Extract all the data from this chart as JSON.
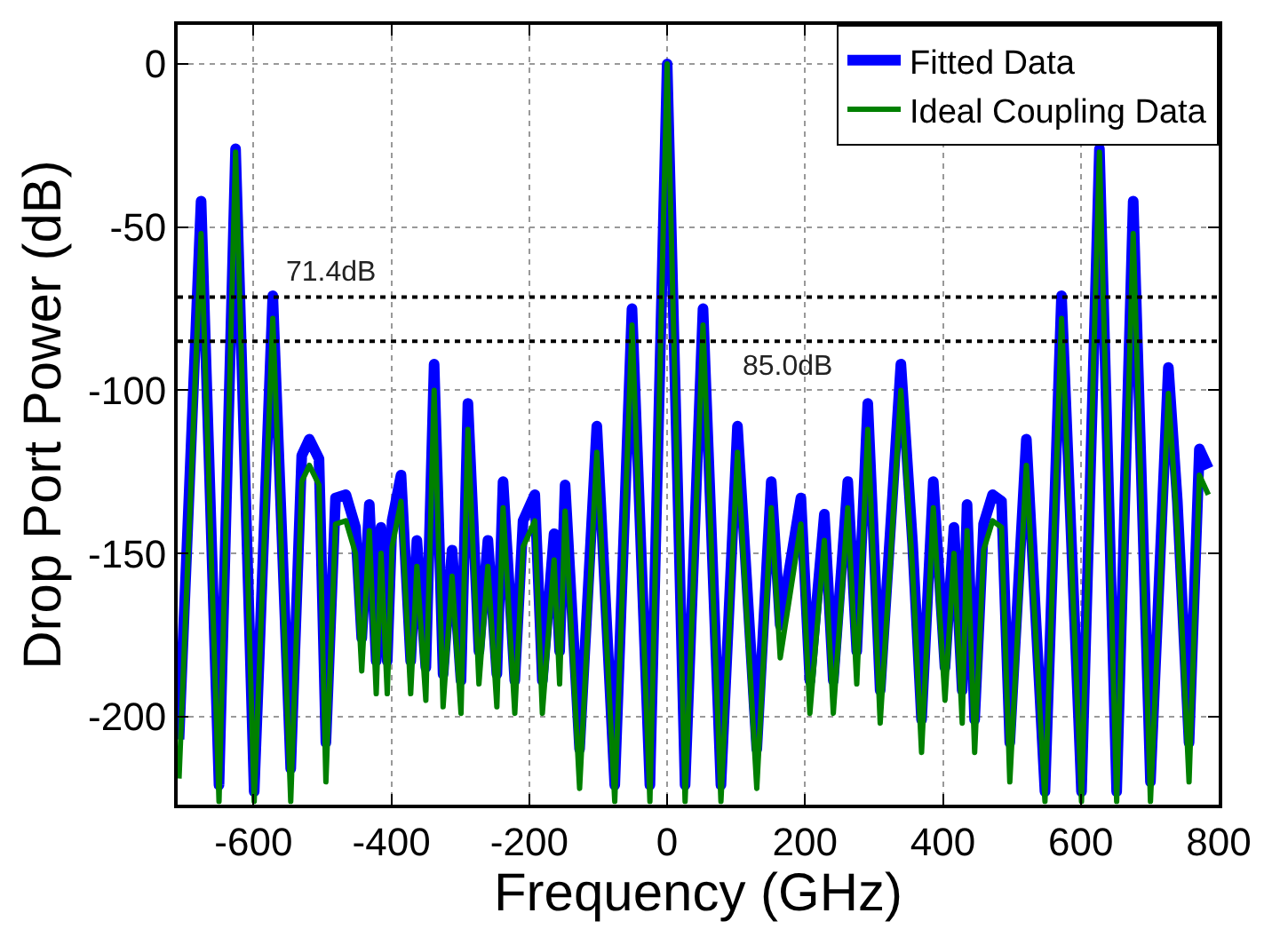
{
  "chart_data": {
    "type": "line",
    "xlabel": "Frequency (GHz)",
    "ylabel": "Drop Port Power (dB)",
    "x": [
      -708,
      -676,
      -650,
      -626,
      -599,
      -572,
      -546,
      -530,
      -519,
      -505,
      -495,
      -481,
      -466,
      -452,
      -443,
      -432,
      -422,
      -415,
      -406,
      -399,
      -386,
      -372,
      -363,
      -350,
      -338,
      -325,
      -312,
      -299,
      -289,
      -273,
      -260,
      -247,
      -238,
      -221,
      -209,
      -192,
      -181,
      -164,
      -156,
      -148,
      -127,
      -102,
      -76,
      -51,
      -25,
      0,
      26,
      52,
      78,
      102,
      130,
      151,
      164,
      194,
      207,
      228,
      241,
      262,
      275,
      291,
      309,
      339,
      356,
      369,
      386,
      403,
      416,
      428,
      435,
      446,
      459,
      472,
      485,
      497,
      521,
      548,
      572,
      601,
      627,
      652,
      676,
      701,
      727,
      740,
      757,
      772,
      785
    ],
    "series": [
      {
        "name": "Fitted Data",
        "color": "#0000ff",
        "values": [
          -207,
          -42,
          -221,
          -26,
          -223,
          -71,
          -216,
          -120,
          -115,
          -121,
          -208,
          -133,
          -132,
          -142,
          -176,
          -135,
          -183,
          -142,
          -183,
          -140,
          -126,
          -183,
          -146,
          -185,
          -92,
          -187,
          -149,
          -189,
          -104,
          -180,
          -146,
          -187,
          -128,
          -189,
          -140,
          -132,
          -189,
          -144,
          -180,
          -129,
          -210,
          -111,
          -221,
          -75,
          -221,
          0,
          -221,
          -75,
          -221,
          -111,
          -210,
          -128,
          -172,
          -133,
          -189,
          -138,
          -189,
          -128,
          -180,
          -104,
          -192,
          -92,
          -147,
          -201,
          -128,
          -185,
          -142,
          -192,
          -135,
          -201,
          -141,
          -132,
          -134,
          -208,
          -115,
          -223,
          -71,
          -223,
          -26,
          -223,
          -42,
          -220,
          -93,
          -134,
          -208,
          -118,
          -124
        ]
      },
      {
        "name": "Ideal Coupling Data",
        "color": "#008000",
        "values": [
          -219,
          -52,
          -226,
          -27,
          -226,
          -78,
          -226,
          -128,
          -123,
          -129,
          -220,
          -141,
          -140,
          -150,
          -186,
          -143,
          -193,
          -150,
          -193,
          -148,
          -134,
          -193,
          -154,
          -195,
          -100,
          -197,
          -157,
          -199,
          -112,
          -190,
          -154,
          -197,
          -136,
          -199,
          -148,
          -140,
          -199,
          -152,
          -190,
          -137,
          -222,
          -119,
          -226,
          -80,
          -226,
          0,
          -226,
          -80,
          -226,
          -119,
          -222,
          -136,
          -182,
          -141,
          -199,
          -146,
          -199,
          -136,
          -190,
          -112,
          -202,
          -100,
          -155,
          -211,
          -136,
          -195,
          -150,
          -202,
          -143,
          -211,
          -149,
          -140,
          -142,
          -220,
          -123,
          -226,
          -78,
          -226,
          -27,
          -226,
          -52,
          -226,
          -101,
          -142,
          -220,
          -126,
          -132
        ]
      }
    ],
    "xlim": [
      -710,
      800
    ],
    "xticks": [
      -600,
      -400,
      -200,
      0,
      200,
      400,
      600,
      800
    ],
    "ylim": [
      -227,
      12
    ],
    "yticks": [
      -200,
      -150,
      -100,
      -50,
      0
    ],
    "ref_lines": [
      {
        "axis": "y",
        "value": -71.4,
        "label": "71.4dB",
        "line_style": "dotted",
        "color": "#000000"
      },
      {
        "axis": "y",
        "value": -85.0,
        "label": "85.0dB",
        "line_style": "dotted",
        "color": "#000000"
      }
    ],
    "grid": true,
    "legend": "top right",
    "marker": "none",
    "line_style": "solid"
  }
}
